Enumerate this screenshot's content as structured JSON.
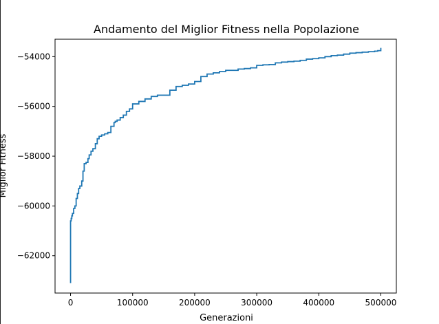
{
  "chart_data": {
    "type": "line",
    "title": "Andamento del Miglior Fitness nella Popolazione",
    "xlabel": "Generazioni",
    "ylabel": "Miglior Fitness",
    "xlim": [
      -25000,
      525000
    ],
    "ylim": [
      -63500,
      -53300
    ],
    "xticks": [
      0,
      100000,
      200000,
      300000,
      400000,
      500000
    ],
    "xtick_labels": [
      "0",
      "100000",
      "200000",
      "300000",
      "400000",
      "500000"
    ],
    "yticks": [
      -62000,
      -60000,
      -58000,
      -56000,
      -54000
    ],
    "ytick_labels": [
      "−62000",
      "−60000",
      "−58000",
      "−56000",
      "−54000"
    ],
    "grid": false,
    "color": "#1f77b4",
    "series": [
      {
        "name": "",
        "x": [
          0,
          1,
          1000,
          2000,
          3000,
          5000,
          7000,
          9000,
          11000,
          13000,
          15000,
          18000,
          20000,
          22000,
          25000,
          28000,
          30000,
          33000,
          36000,
          40000,
          43000,
          46000,
          50000,
          55000,
          60000,
          65000,
          70000,
          72000,
          75000,
          80000,
          85000,
          90000,
          95000,
          100000,
          110000,
          120000,
          130000,
          140000,
          150000,
          160000,
          170000,
          180000,
          190000,
          200000,
          210000,
          220000,
          230000,
          240000,
          250000,
          260000,
          270000,
          280000,
          290000,
          300000,
          310000,
          320000,
          330000,
          340000,
          350000,
          360000,
          370000,
          380000,
          390000,
          400000,
          410000,
          420000,
          430000,
          440000,
          450000,
          460000,
          470000,
          480000,
          490000,
          495000,
          500000
        ],
        "y": [
          -63100,
          -60600,
          -60500,
          -60400,
          -60300,
          -60100,
          -60000,
          -59700,
          -59500,
          -59300,
          -59200,
          -59000,
          -58600,
          -58300,
          -58250,
          -58100,
          -57950,
          -57800,
          -57700,
          -57500,
          -57300,
          -57200,
          -57150,
          -57100,
          -57050,
          -56800,
          -56650,
          -56600,
          -56550,
          -56450,
          -56350,
          -56200,
          -56100,
          -55900,
          -55800,
          -55700,
          -55600,
          -55550,
          -55550,
          -55350,
          -55200,
          -55150,
          -55100,
          -55000,
          -54800,
          -54700,
          -54650,
          -54600,
          -54550,
          -54550,
          -54500,
          -54480,
          -54450,
          -54350,
          -54330,
          -54320,
          -54250,
          -54220,
          -54200,
          -54180,
          -54150,
          -54100,
          -54080,
          -54050,
          -54000,
          -53960,
          -53940,
          -53900,
          -53860,
          -53840,
          -53820,
          -53800,
          -53780,
          -53760,
          -53650
        ]
      }
    ]
  }
}
